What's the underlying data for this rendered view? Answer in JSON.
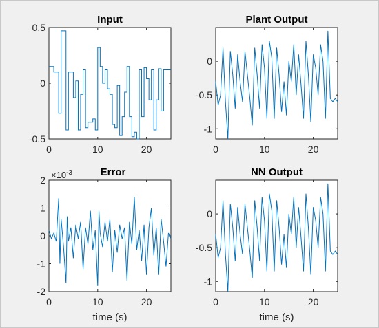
{
  "colors": {
    "line": "#0072BD",
    "axes": "#262626",
    "background": "#f0f0f0",
    "plot_bg": "#ffffff"
  },
  "chart_data": [
    {
      "type": "line",
      "title": "Input",
      "xlabel": "",
      "ylabel": "",
      "xlim": [
        0,
        25
      ],
      "ylim": [
        -0.5,
        0.5
      ],
      "xticks": [
        0,
        10,
        20
      ],
      "yticks": [
        -0.5,
        0,
        0.5
      ],
      "ytick_labels": [
        "-0.5",
        "0",
        "0.5"
      ],
      "exponent_label": "",
      "step": true,
      "series": [
        {
          "x": [
            0,
            1,
            2,
            2.5,
            3.5,
            4,
            4.5,
            5,
            5.5,
            6,
            6.5,
            7,
            7.5,
            8,
            8.5,
            9,
            9.5,
            10,
            10.5,
            11,
            11.5,
            12,
            12.5,
            13,
            13.5,
            14,
            14.5,
            15,
            15.5,
            16,
            16.5,
            17,
            17.5,
            18,
            18.5,
            19,
            19.5,
            20,
            20.5,
            21,
            21.5,
            22,
            22.5,
            23,
            23.5,
            24,
            24.5,
            25
          ],
          "y": [
            0.15,
            0.1,
            -0.27,
            0.47,
            -0.42,
            0.1,
            0.1,
            -0.13,
            0.02,
            -0.42,
            -0.1,
            0.12,
            -0.4,
            -0.35,
            -0.35,
            -0.32,
            -0.42,
            0.32,
            0.15,
            0.0,
            0.12,
            -0.05,
            -0.1,
            -0.37,
            -0.4,
            -0.02,
            -0.47,
            -0.3,
            -0.08,
            0.15,
            -0.3,
            -0.48,
            -0.44,
            -0.5,
            0.12,
            -0.3,
            0.14,
            0.04,
            -0.15,
            0.12,
            -0.42,
            -0.15,
            0.13,
            -0.25,
            0.12,
            0.12,
            0.12,
            0.12
          ]
        }
      ]
    },
    {
      "type": "line",
      "title": "Plant Output",
      "xlabel": "",
      "ylabel": "",
      "xlim": [
        0,
        25
      ],
      "ylim": [
        -1.15,
        0.5
      ],
      "xticks": [
        0,
        10,
        20
      ],
      "yticks": [
        -1,
        -0.5,
        0
      ],
      "ytick_labels": [
        "-1",
        "-0.5",
        "0"
      ],
      "exponent_label": "",
      "step": false,
      "series": [
        {
          "x": [
            0,
            0.5,
            1.0,
            1.5,
            2.0,
            2.5,
            3.0,
            3.5,
            4.0,
            4.5,
            5.0,
            5.5,
            6.0,
            6.5,
            7.0,
            7.5,
            8.0,
            8.5,
            9.0,
            9.5,
            10.0,
            10.5,
            11.0,
            11.5,
            12.0,
            12.5,
            13.0,
            13.5,
            14.0,
            14.5,
            15.0,
            15.5,
            16.0,
            16.5,
            17.0,
            17.5,
            18.0,
            18.5,
            19.0,
            19.5,
            20.0,
            20.5,
            21.0,
            21.5,
            22.0,
            22.5,
            23.0,
            23.5,
            24.0,
            24.5,
            25.0
          ],
          "y": [
            -0.3,
            -0.65,
            -0.5,
            0.2,
            -0.6,
            -1.15,
            0.15,
            -0.2,
            -0.7,
            0.1,
            -0.3,
            -0.6,
            0.15,
            -0.2,
            -0.55,
            -0.95,
            0.2,
            -0.2,
            -0.7,
            0.25,
            -0.1,
            -0.85,
            0.3,
            0.05,
            -0.85,
            0.2,
            -0.2,
            -0.75,
            -0.3,
            -0.8,
            0.0,
            -0.3,
            0.25,
            -0.5,
            0.1,
            -0.35,
            -0.85,
            0.3,
            -0.2,
            -0.9,
            0.1,
            -0.1,
            -0.5,
            0.25,
            0.0,
            -0.85,
            0.45,
            -0.55,
            -0.6,
            -0.55,
            -0.6
          ]
        }
      ]
    },
    {
      "type": "line",
      "title": "Error",
      "xlabel": "time (s)",
      "ylabel": "",
      "xlim": [
        0,
        25
      ],
      "ylim": [
        -2,
        2
      ],
      "xticks": [
        0,
        10,
        20
      ],
      "yticks": [
        -2,
        -1,
        0,
        1,
        2
      ],
      "ytick_labels": [
        "-2",
        "-1",
        "0",
        "1",
        "2"
      ],
      "exponent_label": "×10",
      "exponent_value": "-3",
      "step": false,
      "series": [
        {
          "x": [
            0,
            0.5,
            1.0,
            1.5,
            2.0,
            2.25,
            2.5,
            3.0,
            3.5,
            3.75,
            4.0,
            4.5,
            5.0,
            5.5,
            6.0,
            6.5,
            7.0,
            7.5,
            8.0,
            8.5,
            9.0,
            9.5,
            10.0,
            10.25,
            10.5,
            11.0,
            11.5,
            12.0,
            12.5,
            13.0,
            13.5,
            14.0,
            14.5,
            15.0,
            15.5,
            16.0,
            16.5,
            17.0,
            17.5,
            18.0,
            18.5,
            19.0,
            19.5,
            20.0,
            20.5,
            21.0,
            21.5,
            22.0,
            22.5,
            23.0,
            23.5,
            24.0,
            24.5,
            25.0
          ],
          "y": [
            0.2,
            -0.1,
            0.1,
            -0.2,
            1.35,
            -1.0,
            0.6,
            -0.4,
            -1.7,
            0.7,
            -0.2,
            0.3,
            -0.8,
            0.4,
            -0.1,
            0.5,
            -1.2,
            0.3,
            -0.3,
            0.9,
            -0.5,
            0.2,
            -1.8,
            0.9,
            0.1,
            -0.4,
            0.5,
            -0.2,
            0.6,
            -1.3,
            0.2,
            -0.6,
            0.4,
            -0.1,
            0.3,
            -1.6,
            0.5,
            -0.3,
            1.4,
            -0.5,
            0.2,
            -0.9,
            0.4,
            -1.4,
            0.3,
            1.0,
            -0.7,
            0.3,
            -1.4,
            0.6,
            -0.2,
            -1.1,
            0.1,
            -0.1
          ]
        }
      ]
    },
    {
      "type": "line",
      "title": "NN Output",
      "xlabel": "time (s)",
      "ylabel": "",
      "xlim": [
        0,
        25
      ],
      "ylim": [
        -1.15,
        0.5
      ],
      "xticks": [
        0,
        10,
        20
      ],
      "yticks": [
        -1,
        -0.5,
        0
      ],
      "ytick_labels": [
        "-1",
        "-0.5",
        "0"
      ],
      "exponent_label": "",
      "step": false,
      "series": [
        {
          "x": [
            0,
            0.5,
            1.0,
            1.5,
            2.0,
            2.5,
            3.0,
            3.5,
            4.0,
            4.5,
            5.0,
            5.5,
            6.0,
            6.5,
            7.0,
            7.5,
            8.0,
            8.5,
            9.0,
            9.5,
            10.0,
            10.5,
            11.0,
            11.5,
            12.0,
            12.5,
            13.0,
            13.5,
            14.0,
            14.5,
            15.0,
            15.5,
            16.0,
            16.5,
            17.0,
            17.5,
            18.0,
            18.5,
            19.0,
            19.5,
            20.0,
            20.5,
            21.0,
            21.5,
            22.0,
            22.5,
            23.0,
            23.5,
            24.0,
            24.5,
            25.0
          ],
          "y": [
            -0.3,
            -0.65,
            -0.5,
            0.2,
            -0.6,
            -1.15,
            0.15,
            -0.2,
            -0.7,
            0.1,
            -0.3,
            -0.6,
            0.15,
            -0.2,
            -0.55,
            -0.95,
            0.2,
            -0.2,
            -0.7,
            0.25,
            -0.1,
            -0.85,
            0.3,
            0.05,
            -0.85,
            0.2,
            -0.2,
            -0.75,
            -0.3,
            -0.8,
            0.0,
            -0.3,
            0.25,
            -0.5,
            0.1,
            -0.35,
            -0.85,
            0.3,
            -0.2,
            -0.9,
            0.1,
            -0.1,
            -0.5,
            0.25,
            0.0,
            -0.85,
            0.45,
            -0.55,
            -0.6,
            -0.55,
            -0.6
          ]
        }
      ]
    }
  ]
}
